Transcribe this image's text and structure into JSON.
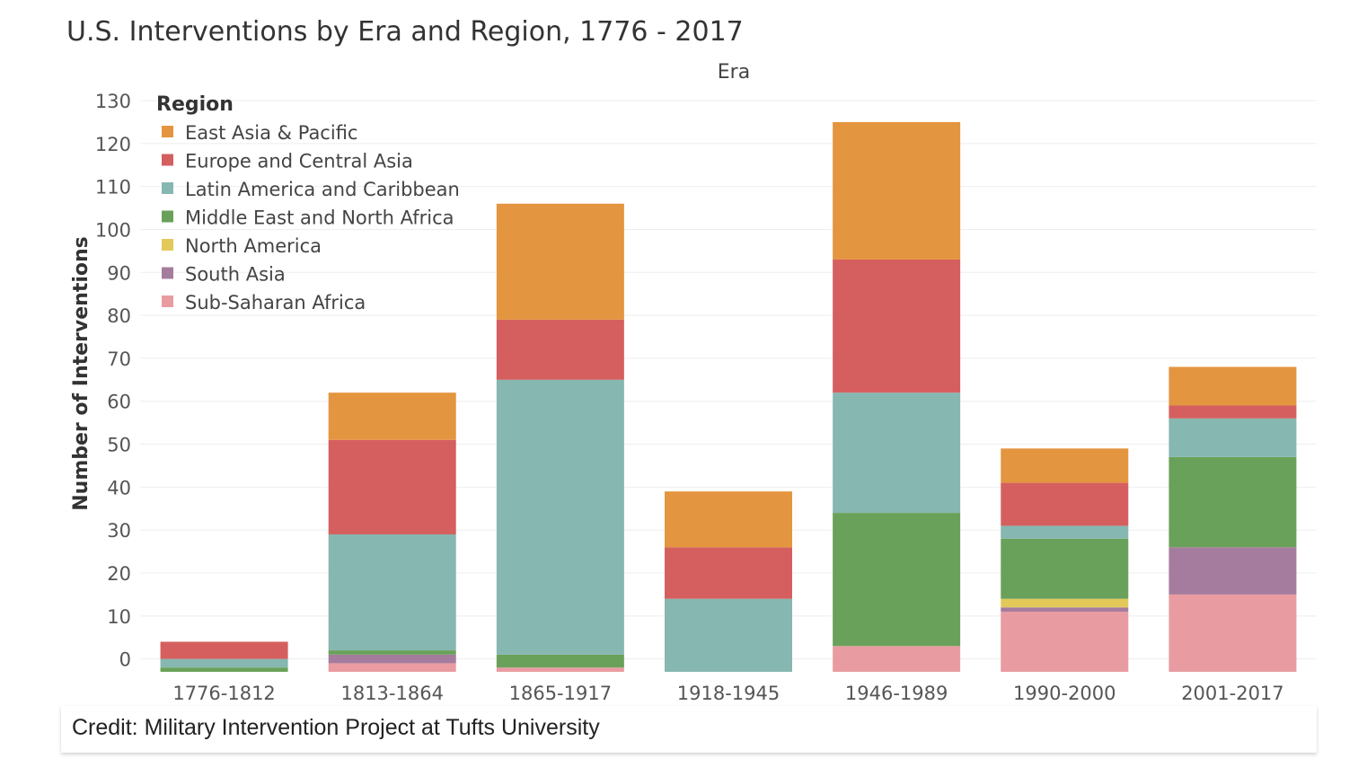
{
  "title": "U.S. Interventions by Era and Region, 1776 - 2017",
  "credit": "Credit: Military Intervention Project at Tufts University",
  "chart_data": {
    "type": "bar",
    "stacked": true,
    "column_header": "Era",
    "ylabel": "Number of Interventions",
    "ylim": [
      -3,
      130
    ],
    "yticks": [
      0,
      10,
      20,
      30,
      40,
      50,
      60,
      70,
      80,
      90,
      100,
      110,
      120,
      130
    ],
    "grid": true,
    "legend": {
      "title": "Region",
      "placement": "top-left"
    },
    "categories": [
      "1776-1812",
      "1813-1864",
      "1865-1917",
      "1918-1945",
      "1946-1989",
      "1990-2000",
      "2001-2017"
    ],
    "series": [
      {
        "name": "Sub-Saharan Africa",
        "color": "#e89ca1",
        "values": [
          0,
          2,
          1,
          0,
          6,
          14,
          18
        ]
      },
      {
        "name": "South Asia",
        "color": "#a57c9e",
        "values": [
          0,
          2,
          0,
          0,
          0,
          1,
          11
        ]
      },
      {
        "name": "North America",
        "color": "#e3c95a",
        "values": [
          0,
          0,
          0,
          0,
          0,
          2,
          0
        ]
      },
      {
        "name": "Middle East and North Africa",
        "color": "#6aa15a",
        "values": [
          1,
          1,
          3,
          0,
          31,
          14,
          21
        ]
      },
      {
        "name": "Latin America and Caribbean",
        "color": "#86b7b0",
        "values": [
          2,
          27,
          64,
          17,
          28,
          3,
          9
        ]
      },
      {
        "name": "Europe and Central Asia",
        "color": "#d55f5f",
        "values": [
          4,
          22,
          14,
          12,
          31,
          10,
          3
        ]
      },
      {
        "name": "East Asia & Pacific",
        "color": "#e49540",
        "values": [
          0,
          11,
          27,
          13,
          32,
          8,
          9
        ]
      }
    ],
    "legend_order": [
      "East Asia & Pacific",
      "Europe and Central Asia",
      "Latin America and Caribbean",
      "Middle East and North Africa",
      "North America",
      "South Asia",
      "Sub-Saharan Africa"
    ]
  }
}
